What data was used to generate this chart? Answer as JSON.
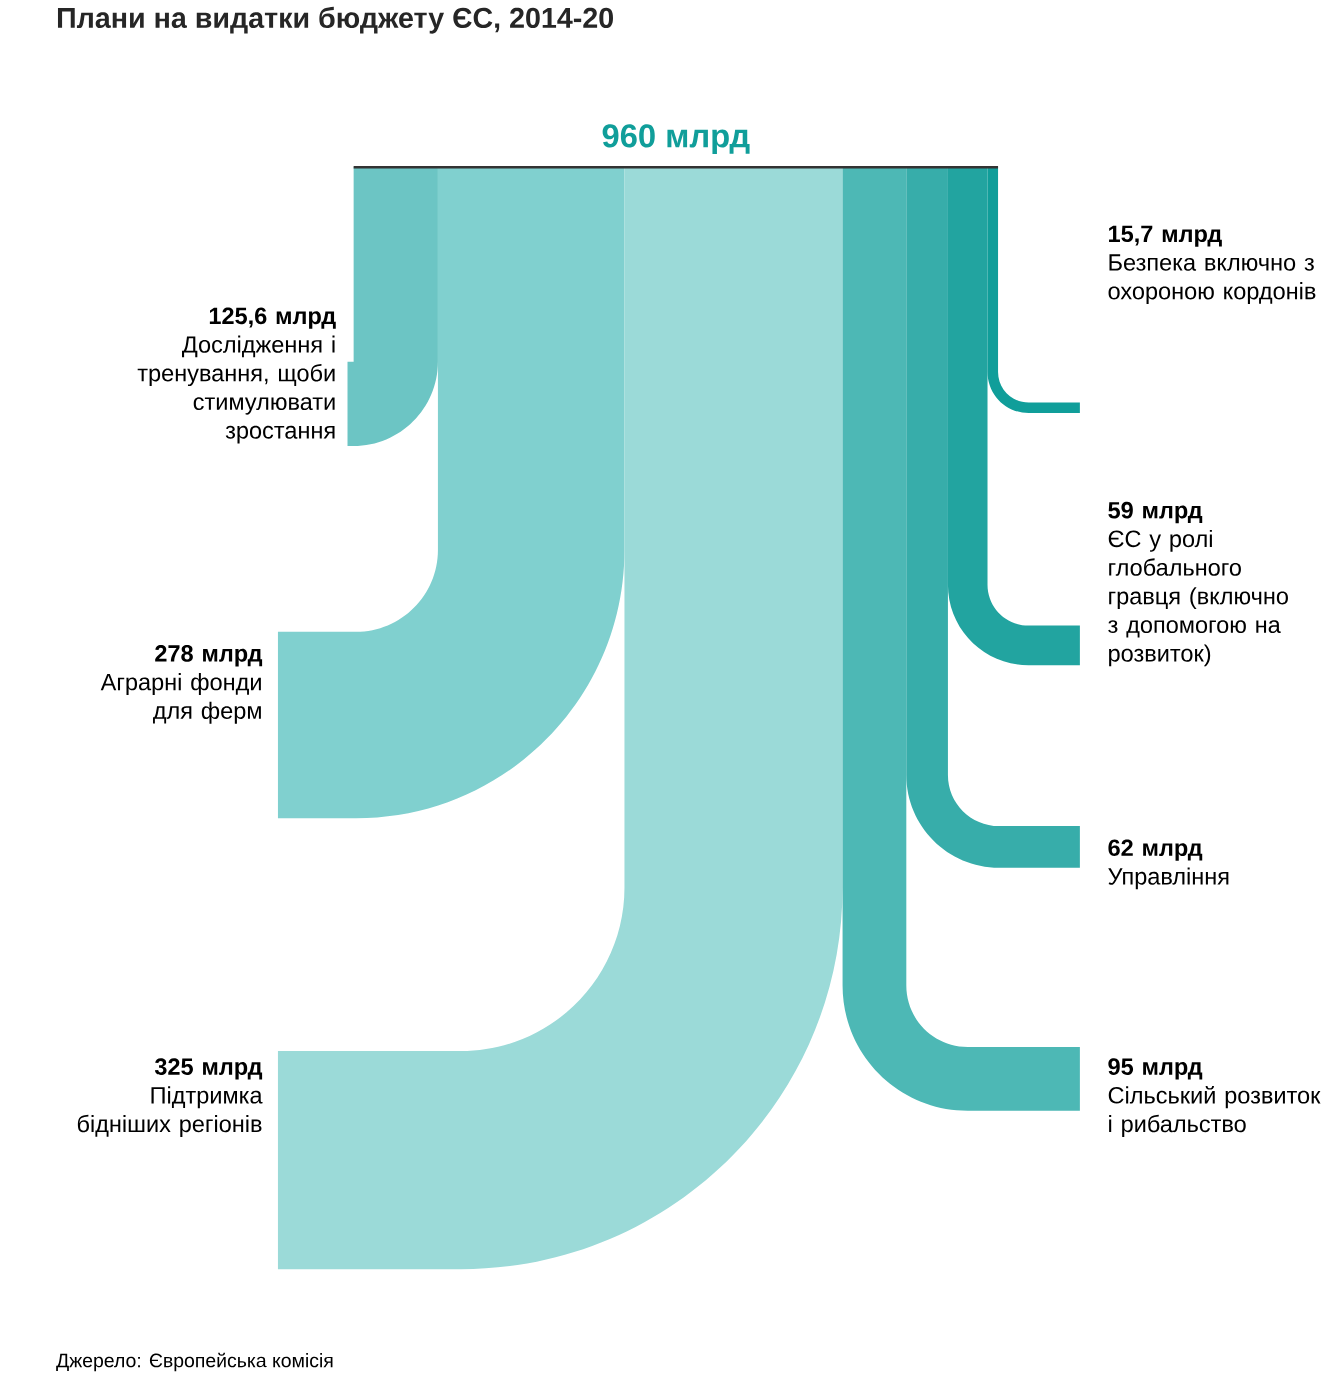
{
  "chart_data": {
    "type": "other",
    "title": "Плани на видатки бюджету ЄС, 2014-20",
    "totals": [
      "960 млрд"
    ],
    "categories": [
      "Дослідження і тренування, щоби стимулювати зростання",
      "Аграрні фонди для ферм",
      "Підтримка бідніших регіонів",
      "Сільський розвиток і рибальство",
      "Управління",
      "ЄС у ролі глобального гравця (включно з допомогою на розвиток)",
      "Безпека включно з охороною кордонів"
    ],
    "values": [
      125.6,
      278,
      325,
      95,
      62,
      59,
      15.7
    ],
    "value_labels": [
      "125,6 млрд",
      "278 млрд",
      "325 млрд",
      "95 млрд",
      "62 млрд",
      "59 млрд",
      "15,7 млрд"
    ],
    "colors": [
      "#6cc5c4",
      "#80d0cf",
      "#9bdad8",
      "#4db8b5",
      "#37adaa",
      "#22a4a0",
      "#109e9a"
    ],
    "annotations": [
      "Джерело: Європейська комісія"
    ]
  }
}
